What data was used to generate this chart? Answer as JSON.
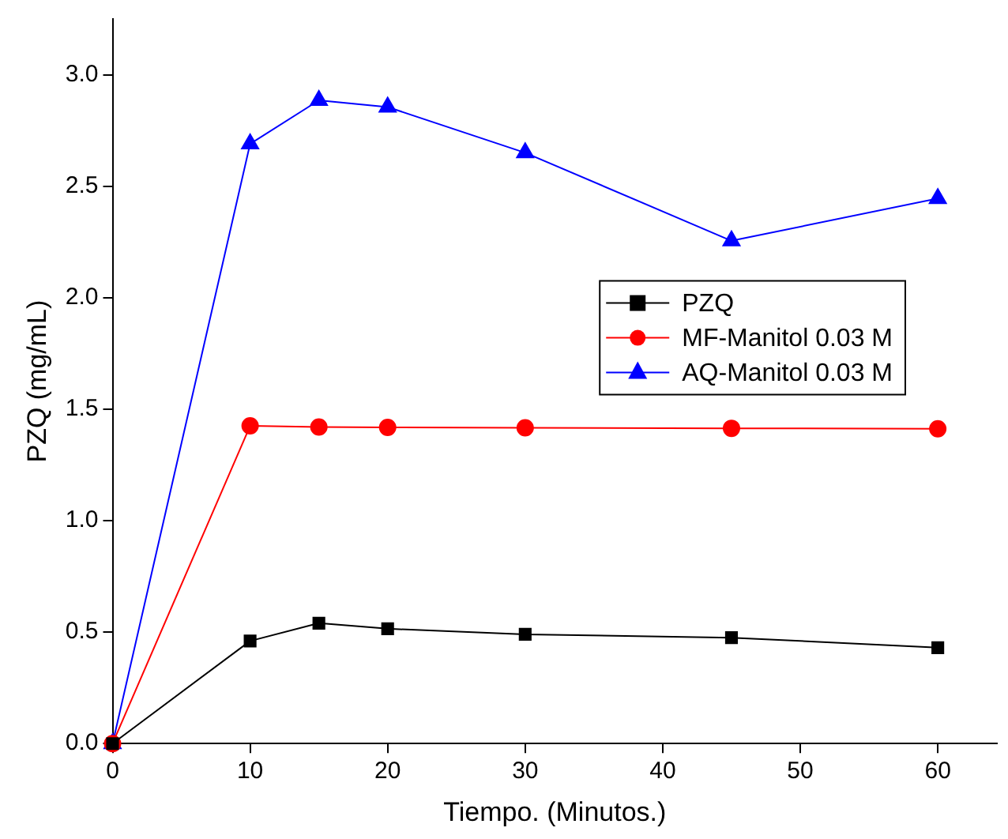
{
  "chart_data": {
    "type": "line",
    "xlabel": "Tiempo. (Minutos.)",
    "ylabel": "PZQ (mg/mL)",
    "x": [
      0,
      10,
      15,
      20,
      30,
      45,
      60
    ],
    "series": [
      {
        "name": "PZQ",
        "color": "#000000",
        "marker": "square",
        "values": [
          0,
          0.46,
          0.54,
          0.515,
          0.49,
          0.475,
          0.43
        ]
      },
      {
        "name": "MF-Manitol 0.03 M",
        "color": "#ff0000",
        "marker": "circle",
        "values": [
          0,
          1.425,
          1.42,
          1.418,
          1.416,
          1.414,
          1.412
        ]
      },
      {
        "name": "AQ-Manitol 0.03 M",
        "color": "#0000ff",
        "marker": "triangle",
        "values": [
          0,
          2.69,
          2.885,
          2.855,
          2.65,
          2.255,
          2.445
        ]
      }
    ],
    "xlim": [
      0,
      64.3
    ],
    "xticks": [
      0,
      10,
      20,
      30,
      40,
      50,
      60
    ],
    "ylim": [
      0,
      3.25
    ],
    "yticks": [
      {
        "value": 0,
        "label": "0.0"
      },
      {
        "value": 0.5,
        "label": "0.5"
      },
      {
        "value": 1,
        "label": "1.0"
      },
      {
        "value": 1.5,
        "label": "1.5"
      },
      {
        "value": 2,
        "label": "2.0"
      },
      {
        "value": 2.5,
        "label": "2.5"
      },
      {
        "value": 3,
        "label": "3.0"
      }
    ],
    "grid": false,
    "legend": "center right",
    "line_style": "solid"
  }
}
